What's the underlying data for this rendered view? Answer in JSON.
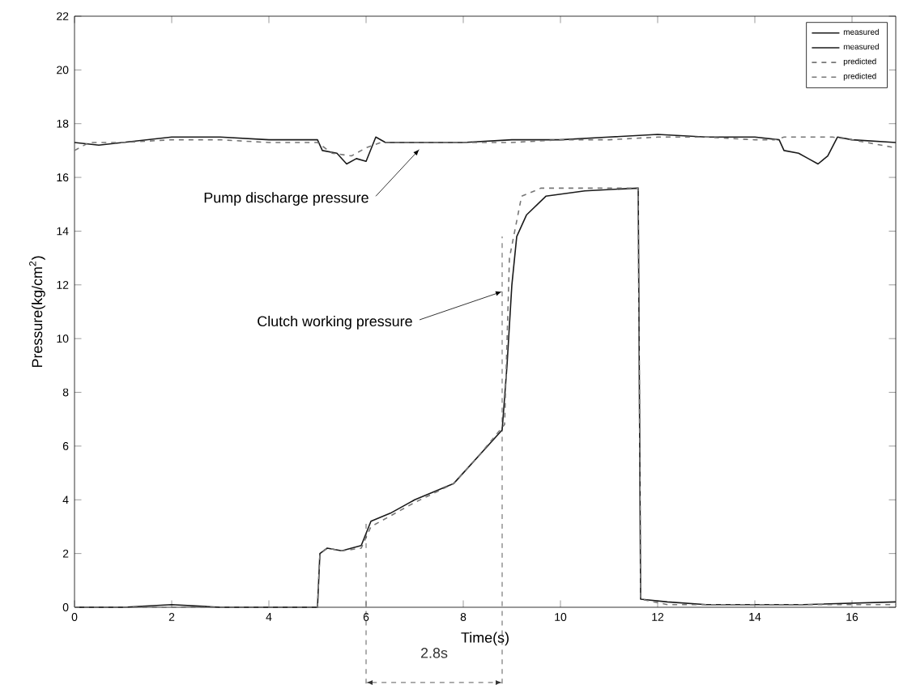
{
  "chart_data": {
    "type": "line",
    "xlabel": "Time(s)",
    "ylabel": "Pressure(kg/cm$^{2}$)",
    "xlim": [
      0,
      16.9
    ],
    "ylim": [
      0,
      22
    ],
    "xticks": [
      0,
      2,
      4,
      6,
      8,
      10,
      12,
      14,
      16
    ],
    "yticks": [
      0,
      2,
      4,
      6,
      8,
      10,
      12,
      14,
      16,
      18,
      20,
      22
    ],
    "legend": "top right",
    "grid": false,
    "series": [
      {
        "name": "measured",
        "color": "#1a1a1a",
        "line_style": "solid",
        "x": [
          0,
          0.5,
          1,
          2,
          3,
          4,
          5,
          5.1,
          5.4,
          5.6,
          5.8,
          6.0,
          6.2,
          6.4,
          7,
          8,
          9,
          10,
          11,
          12,
          13,
          14,
          14.5,
          14.6,
          14.9,
          15.1,
          15.3,
          15.5,
          15.7,
          16,
          16.9
        ],
        "values": [
          17.3,
          17.2,
          17.3,
          17.5,
          17.5,
          17.4,
          17.4,
          17.0,
          16.9,
          16.5,
          16.7,
          16.6,
          17.5,
          17.3,
          17.3,
          17.3,
          17.4,
          17.4,
          17.5,
          17.6,
          17.5,
          17.5,
          17.4,
          17.0,
          16.9,
          16.7,
          16.5,
          16.8,
          17.5,
          17.4,
          17.3
        ]
      },
      {
        "name": "measured",
        "color": "#1a1a1a",
        "line_style": "solid",
        "x": [
          0,
          1,
          2,
          3,
          4,
          5,
          5.05,
          5.2,
          5.5,
          5.9,
          6.1,
          6.5,
          7,
          7.8,
          8.3,
          8.8,
          8.9,
          9.0,
          9.1,
          9.3,
          9.7,
          10.5,
          11.6,
          11.65,
          12.2,
          13,
          14,
          15,
          16.9
        ],
        "values": [
          0,
          0,
          0.1,
          0,
          0,
          0,
          2.0,
          2.2,
          2.1,
          2.3,
          3.2,
          3.5,
          4.0,
          4.6,
          5.6,
          6.6,
          9.0,
          12.0,
          13.8,
          14.6,
          15.3,
          15.5,
          15.6,
          0.3,
          0.2,
          0.1,
          0.1,
          0.1,
          0.2
        ]
      },
      {
        "name": "predicted",
        "color": "#777777",
        "line_style": "dashed",
        "x": [
          0,
          0.3,
          1,
          2,
          3,
          4,
          5,
          5.3,
          5.7,
          6.0,
          6.3,
          7,
          8,
          9,
          10,
          11,
          12,
          13,
          14,
          14.4,
          14.6,
          15.6,
          16,
          16.9
        ],
        "values": [
          17.0,
          17.3,
          17.3,
          17.4,
          17.4,
          17.3,
          17.3,
          16.9,
          16.8,
          17.1,
          17.3,
          17.3,
          17.3,
          17.3,
          17.4,
          17.4,
          17.5,
          17.5,
          17.4,
          17.4,
          17.5,
          17.5,
          17.4,
          17.1
        ]
      },
      {
        "name": "predicted",
        "color": "#777777",
        "line_style": "dashed",
        "x": [
          0,
          5,
          5.05,
          5.2,
          5.5,
          5.9,
          6.1,
          7,
          7.8,
          8.3,
          8.85,
          8.95,
          9.2,
          9.6,
          10.5,
          11.6,
          11.65,
          12.2,
          16.9
        ],
        "values": [
          0,
          0,
          2.0,
          2.2,
          2.1,
          2.2,
          3.0,
          3.9,
          4.6,
          5.6,
          6.8,
          13.0,
          15.3,
          15.6,
          15.6,
          15.6,
          0.3,
          0.1,
          0.1
        ]
      }
    ],
    "ref_lines": [
      {
        "axis": "x",
        "value": 6,
        "color": "#333333",
        "line_style": "dashed"
      },
      {
        "axis": "x",
        "value": 8.8,
        "color": "#333333",
        "line_style": "dashed"
      }
    ],
    "annotations": [
      {
        "text": "Pump discharge pressure",
        "x": 7.1,
        "y": 17.3
      },
      {
        "text": "Clutch working pressure",
        "x": 8.8,
        "y": 12.0
      },
      "2.8s"
    ]
  }
}
